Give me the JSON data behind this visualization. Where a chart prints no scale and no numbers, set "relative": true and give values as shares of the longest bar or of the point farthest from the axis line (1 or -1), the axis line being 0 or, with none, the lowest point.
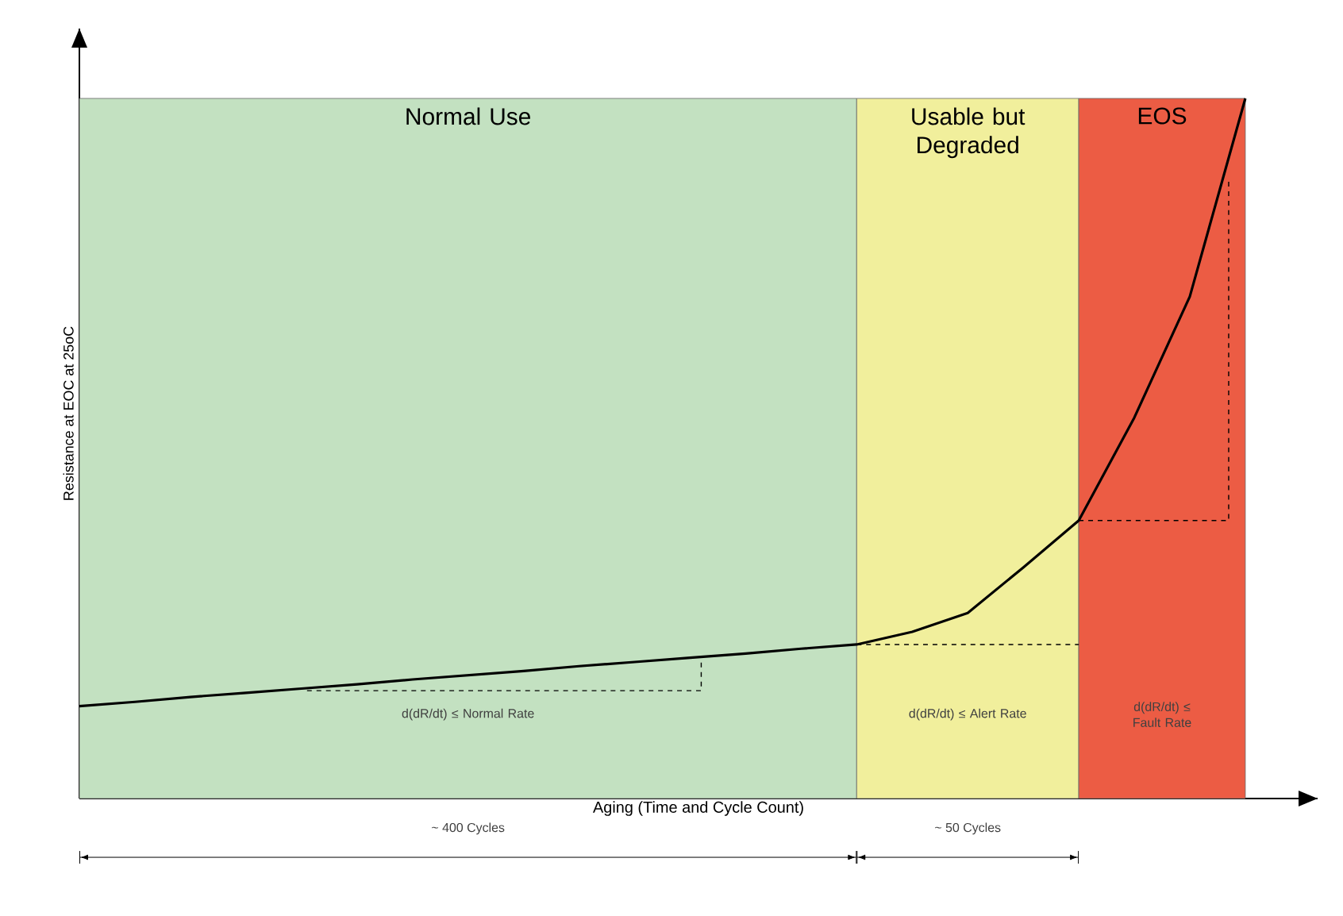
{
  "chart_data": {
    "type": "line",
    "relative": true,
    "xlabel": "Aging (Time and Cycle Count)",
    "ylabel": "Resistance at EOC at 25oC",
    "categories": [
      null,
      null,
      null,
      null,
      null,
      null,
      null,
      null,
      null,
      null,
      null,
      null,
      null,
      null,
      null,
      null,
      null,
      null,
      null,
      null,
      null,
      null
    ],
    "values": [
      0.132,
      0.138,
      0.145,
      0.151,
      0.157,
      0.163,
      0.17,
      0.176,
      0.182,
      0.189,
      0.195,
      0.201,
      0.207,
      0.214,
      0.22,
      0.238,
      0.265,
      0.33,
      0.397,
      0.544,
      0.717,
      1
    ],
    "color": "#000000",
    "annotations": [
      "Normal Use",
      "Usable but Degraded",
      "EOS",
      "d(dR/dt) ≤ Normal Rate",
      "d(dR/dt) ≤ Alert Rate",
      "d(dR/dt) ≤ Fault Rate",
      "~ 400 Cycles",
      "~ 50 Cycles"
    ]
  }
}
